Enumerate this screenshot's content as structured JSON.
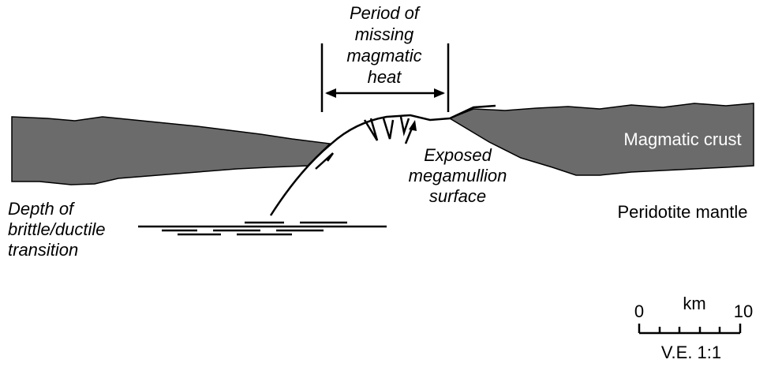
{
  "labels": {
    "period": [
      "Period of",
      "missing",
      "magmatic",
      "heat"
    ],
    "crust": "Magmatic crust",
    "exposed": [
      "Exposed",
      "megamullion",
      "surface"
    ],
    "depth": [
      "Depth of",
      "brittle/ductile",
      "transition"
    ],
    "mantle": "Peridotite mantle"
  },
  "scale_bar": {
    "start": "0",
    "unit": "km",
    "end": "10",
    "note": "V.E. 1:1"
  }
}
